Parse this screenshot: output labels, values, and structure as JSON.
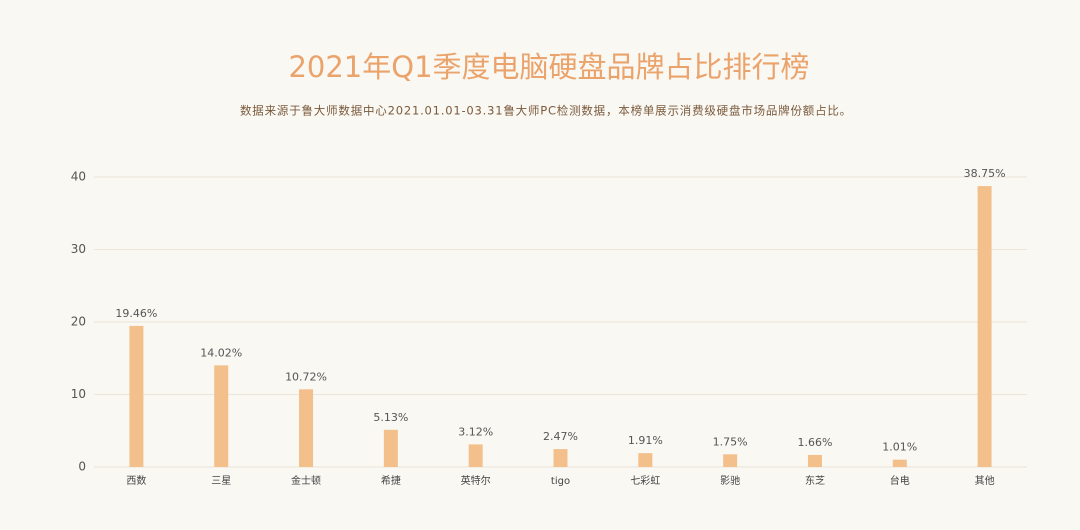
{
  "chart_data": {
    "type": "bar",
    "title": "2021年Q1季度电脑硬盘品牌占比排行榜",
    "subtitle": "数据来源于鲁大师数据中心2021.01.01-03.31鲁大师PC检测数据，本榜单展示消费级硬盘市场品牌份额占比。",
    "categories": [
      "西数",
      "三星",
      "金士顿",
      "希捷",
      "英特尔",
      "tigo",
      "七彩虹",
      "影驰",
      "东芝",
      "台电",
      "其他"
    ],
    "values": [
      19.46,
      14.02,
      10.72,
      5.13,
      3.12,
      2.47,
      1.91,
      1.75,
      1.66,
      1.01,
      38.75
    ],
    "value_labels": [
      "19.46%",
      "14.02%",
      "10.72%",
      "5.13%",
      "3.12%",
      "2.47%",
      "1.91%",
      "1.75%",
      "1.66%",
      "1.01%",
      "38.75%"
    ],
    "color": "#f3c08c",
    "ylim": [
      0,
      40
    ],
    "yticks": [
      0,
      10,
      20,
      30,
      40
    ],
    "grid": true
  }
}
